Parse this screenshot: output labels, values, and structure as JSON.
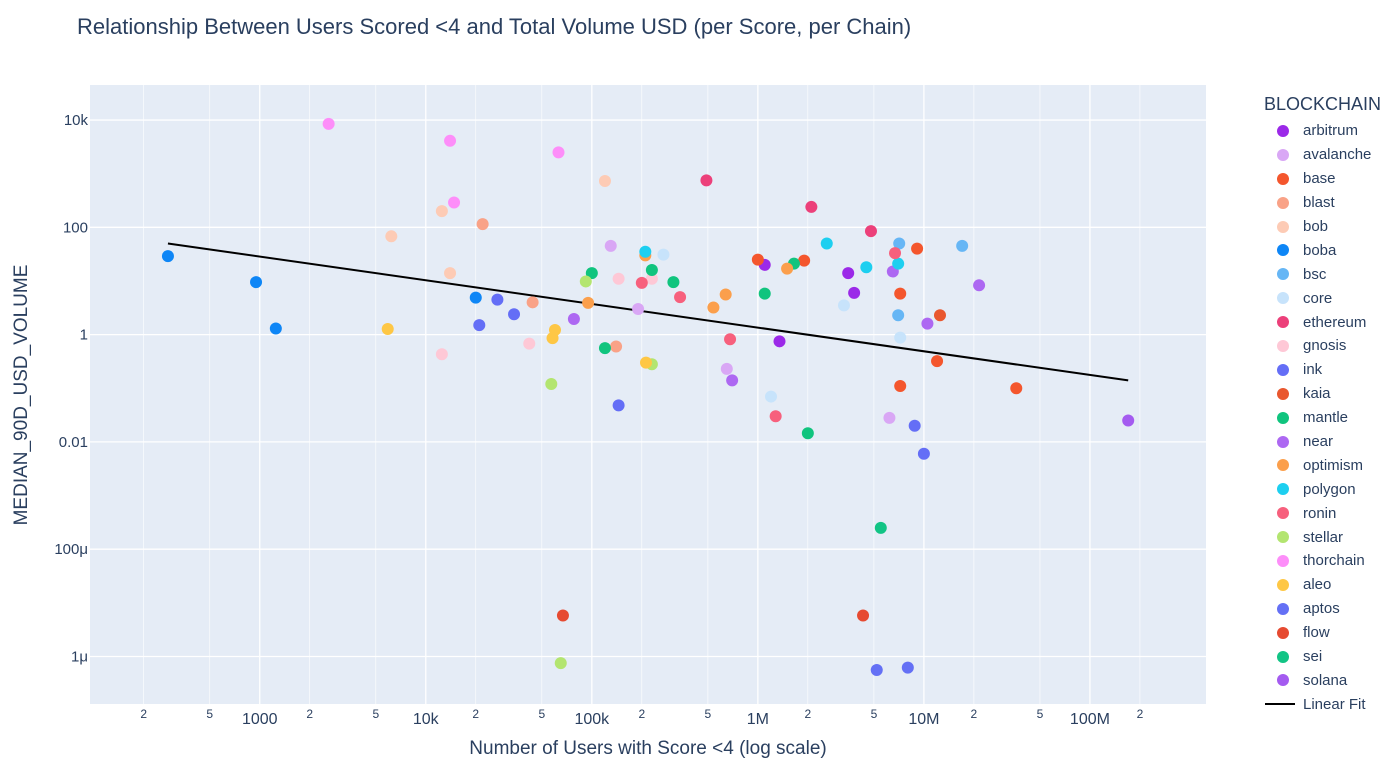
{
  "chart_data": {
    "type": "scatter",
    "title": "Relationship Between Users Scored <4 and Total Volume USD (per Score, per Chain)",
    "xlabel": "Number of Users with Score <4 (log scale)",
    "ylabel": "MEDIAN_90D_USD_VOLUME",
    "x_scale": "log",
    "y_scale": "log",
    "xlim": [
      95,
      500000000
    ],
    "ylim": [
      1.3e-07,
      45000
    ],
    "x_ticks": [
      {
        "v": 200,
        "label": "2",
        "major": false
      },
      {
        "v": 500,
        "label": "5",
        "major": false
      },
      {
        "v": 1000,
        "label": "1000",
        "major": true
      },
      {
        "v": 2000,
        "label": "2",
        "major": false
      },
      {
        "v": 5000,
        "label": "5",
        "major": false
      },
      {
        "v": 10000,
        "label": "10k",
        "major": true
      },
      {
        "v": 20000,
        "label": "2",
        "major": false
      },
      {
        "v": 50000,
        "label": "5",
        "major": false
      },
      {
        "v": 100000,
        "label": "100k",
        "major": true
      },
      {
        "v": 200000,
        "label": "2",
        "major": false
      },
      {
        "v": 500000,
        "label": "5",
        "major": false
      },
      {
        "v": 1000000,
        "label": "1M",
        "major": true
      },
      {
        "v": 2000000,
        "label": "2",
        "major": false
      },
      {
        "v": 5000000,
        "label": "5",
        "major": false
      },
      {
        "v": 10000000,
        "label": "10M",
        "major": true
      },
      {
        "v": 20000000,
        "label": "2",
        "major": false
      },
      {
        "v": 50000000,
        "label": "5",
        "major": false
      },
      {
        "v": 100000000,
        "label": "100M",
        "major": true
      },
      {
        "v": 200000000,
        "label": "2",
        "major": false
      }
    ],
    "y_ticks": [
      {
        "v": 1e-06,
        "label": "1μ"
      },
      {
        "v": 0.0001,
        "label": "100μ"
      },
      {
        "v": 0.01,
        "label": "0.01"
      },
      {
        "v": 1,
        "label": "1"
      },
      {
        "v": 100,
        "label": "100"
      },
      {
        "v": 10000,
        "label": "10k"
      }
    ],
    "legend_title": "BLOCKCHAIN",
    "series": [
      {
        "name": "arbitrum",
        "color": "#9b29e8",
        "points": [
          [
            1100000,
            20
          ],
          [
            1350000,
            0.75
          ],
          [
            3500000,
            14
          ],
          [
            3800000,
            6
          ]
        ]
      },
      {
        "name": "avalanche",
        "color": "#d9a7f5",
        "points": [
          [
            130000,
            45
          ],
          [
            190000,
            3
          ],
          [
            650000,
            0.23
          ],
          [
            6200000,
            0.028
          ]
        ]
      },
      {
        "name": "base",
        "color": "#f4562d",
        "points": [
          [
            1000000,
            25
          ],
          [
            1900000,
            24
          ],
          [
            7200000,
            5.8
          ],
          [
            7200000,
            0.11
          ],
          [
            9100000,
            40
          ],
          [
            12000000,
            0.32
          ],
          [
            36000000,
            0.1
          ]
        ]
      },
      {
        "name": "blast",
        "color": "#f9a287",
        "points": [
          [
            22000,
            115
          ],
          [
            44000,
            4
          ],
          [
            140000,
            0.6
          ]
        ]
      },
      {
        "name": "bob",
        "color": "#fdcbb5",
        "points": [
          [
            6200,
            68
          ],
          [
            12500,
            200
          ],
          [
            14000,
            14
          ],
          [
            120000,
            730
          ]
        ]
      },
      {
        "name": "boba",
        "color": "#0e86f6",
        "points": [
          [
            280,
            29
          ],
          [
            950,
            9.5
          ],
          [
            1250,
            1.3
          ],
          [
            20000,
            4.9
          ]
        ]
      },
      {
        "name": "bsc",
        "color": "#66b6f5",
        "points": [
          [
            7000000,
            2.3
          ],
          [
            7100000,
            50
          ],
          [
            17000000,
            45
          ]
        ]
      },
      {
        "name": "core",
        "color": "#c7e3fb",
        "points": [
          [
            270000,
            31
          ],
          [
            1200000,
            0.07
          ],
          [
            3300000,
            3.5
          ],
          [
            7200000,
            0.88
          ]
        ]
      },
      {
        "name": "ethereum",
        "color": "#ec407a",
        "points": [
          [
            490000,
            750
          ],
          [
            2100000,
            240
          ],
          [
            4800000,
            85
          ]
        ]
      },
      {
        "name": "gnosis",
        "color": "#fec8d6",
        "points": [
          [
            12500,
            0.43
          ],
          [
            42000,
            0.68
          ],
          [
            145000,
            11
          ],
          [
            230000,
            11
          ]
        ]
      },
      {
        "name": "ink",
        "color": "#646ef6",
        "points": [
          [
            21000,
            1.5
          ],
          [
            27000,
            4.5
          ],
          [
            34000,
            2.4
          ],
          [
            145000,
            0.048
          ],
          [
            8800000,
            0.02
          ],
          [
            10000000,
            0.006
          ]
        ]
      },
      {
        "name": "kaia",
        "color": "#e9572e",
        "points": [
          [
            12500000,
            2.3
          ]
        ]
      },
      {
        "name": "mantle",
        "color": "#10c47e",
        "points": [
          [
            100000,
            14
          ],
          [
            120000,
            0.56
          ],
          [
            230000,
            16
          ],
          [
            310000,
            9.5
          ],
          [
            1100000,
            5.8
          ],
          [
            1650000,
            21
          ],
          [
            2000000,
            0.0145
          ]
        ]
      },
      {
        "name": "near",
        "color": "#ad68f2",
        "points": [
          [
            78000,
            1.95
          ],
          [
            700000,
            0.14
          ],
          [
            6500000,
            15
          ],
          [
            10500000,
            1.6
          ],
          [
            21500000,
            8.3
          ]
        ]
      },
      {
        "name": "optimism",
        "color": "#fb9f4c",
        "points": [
          [
            95000,
            3.9
          ],
          [
            210000,
            30
          ],
          [
            540000,
            3.2
          ],
          [
            640000,
            5.6
          ],
          [
            1500000,
            17
          ]
        ]
      },
      {
        "name": "polygon",
        "color": "#1dcff0",
        "points": [
          [
            210000,
            35
          ],
          [
            2600000,
            50
          ],
          [
            4500000,
            18
          ],
          [
            7000000,
            21
          ]
        ]
      },
      {
        "name": "ronin",
        "color": "#f7607d",
        "points": [
          [
            200000,
            9.2
          ],
          [
            340000,
            5
          ],
          [
            680000,
            0.82
          ],
          [
            1280000,
            0.03
          ],
          [
            6700000,
            33
          ]
        ]
      },
      {
        "name": "stellar",
        "color": "#b3e570",
        "points": [
          [
            57000,
            0.12
          ],
          [
            92000,
            9.8
          ],
          [
            230000,
            0.28
          ],
          [
            65000,
            7.5e-07
          ]
        ]
      },
      {
        "name": "thorchain",
        "color": "#fd8ef9",
        "points": [
          [
            2600,
            8500
          ],
          [
            14000,
            4100
          ],
          [
            14800,
            290
          ],
          [
            63000,
            2500
          ]
        ]
      },
      {
        "name": "aleo",
        "color": "#fec745",
        "points": [
          [
            5900,
            1.27
          ],
          [
            58000,
            0.86
          ],
          [
            60000,
            1.22
          ],
          [
            212000,
            0.3
          ]
        ]
      },
      {
        "name": "aptos",
        "color": "#6470f5",
        "points": [
          [
            5200000,
            5.6e-07
          ],
          [
            8000000,
            6.2e-07
          ]
        ]
      },
      {
        "name": "flow",
        "color": "#e64a31",
        "points": [
          [
            67000,
            5.8e-06
          ],
          [
            4300000,
            5.8e-06
          ]
        ]
      },
      {
        "name": "sei",
        "color": "#12c485",
        "points": [
          [
            5500000,
            0.00025
          ]
        ]
      },
      {
        "name": "solana",
        "color": "#a45bf0",
        "points": [
          [
            170000000,
            0.025
          ]
        ]
      }
    ],
    "fit": {
      "name": "Linear Fit",
      "color": "#000000",
      "x": [
        280,
        170000000
      ],
      "y": [
        50,
        0.14
      ]
    }
  }
}
